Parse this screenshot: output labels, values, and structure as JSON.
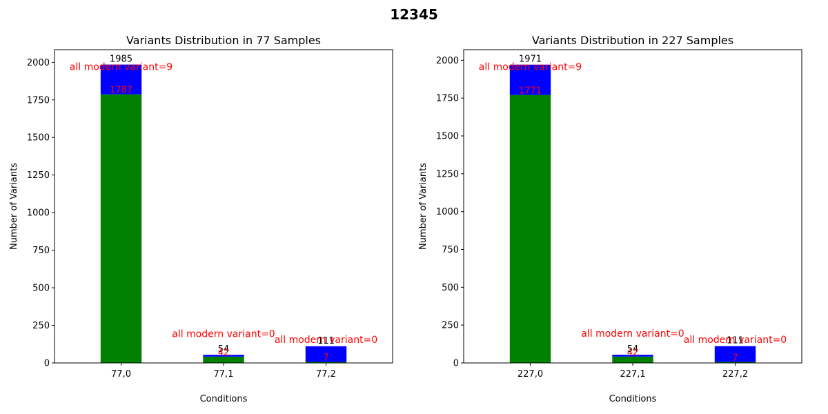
{
  "figure": {
    "suptitle": "12345"
  },
  "chart_data": [
    {
      "type": "bar",
      "stacked": true,
      "title": "Variants Distribution in 77 Samples",
      "xlabel": "Conditions",
      "ylabel": "Number of Variants",
      "categories": [
        "77,0",
        "77,1",
        "77,2"
      ],
      "series": [
        {
          "color": "#008000",
          "values": [
            1787,
            42,
            7
          ]
        },
        {
          "color": "#0000ff",
          "values": [
            198,
            12,
            104
          ]
        }
      ],
      "totals": [
        1985,
        54,
        111
      ],
      "base_labels": [
        "1787",
        "42",
        "7"
      ],
      "total_labels": [
        "1985",
        "54",
        "111"
      ],
      "annotations": [
        "all modern variant=9",
        "all modern variant=0",
        "all modern variant=0"
      ],
      "ylim": [
        0,
        2084
      ],
      "yticks": [
        0,
        250,
        500,
        750,
        1000,
        1250,
        1500,
        1750,
        2000
      ],
      "grid": false
    },
    {
      "type": "bar",
      "stacked": true,
      "title": "Variants Distribution in 227 Samples",
      "xlabel": "Conditions",
      "ylabel": "Number of Variants",
      "categories": [
        "227,0",
        "227,1",
        "227,2"
      ],
      "series": [
        {
          "color": "#008000",
          "values": [
            1771,
            42,
            7
          ]
        },
        {
          "color": "#0000ff",
          "values": [
            200,
            12,
            104
          ]
        }
      ],
      "totals": [
        1971,
        54,
        111
      ],
      "base_labels": [
        "1771",
        "42",
        "7"
      ],
      "total_labels": [
        "1971",
        "54",
        "111"
      ],
      "annotations": [
        "all modern variant=9",
        "all modern variant=0",
        "all modern variant=0"
      ],
      "ylim": [
        0,
        2070
      ],
      "yticks": [
        0,
        250,
        500,
        750,
        1000,
        1250,
        1500,
        1750,
        2000
      ],
      "grid": false
    }
  ]
}
